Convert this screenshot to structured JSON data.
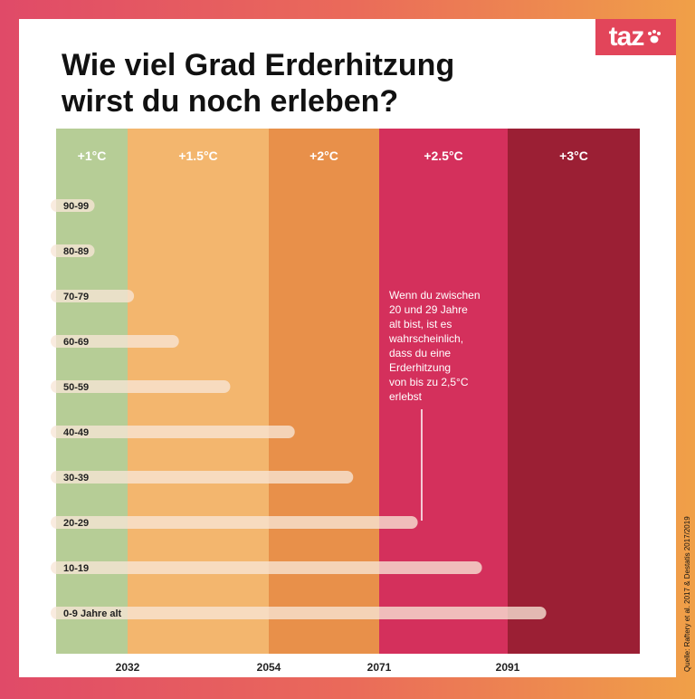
{
  "title_lines": [
    "Wie viel Grad Erderhitzung",
    "wirst du noch erleben?"
  ],
  "logo": "taz",
  "source": "Quelle: Raftery et al. 2017 & Destatis 2017/2019",
  "colors": {
    "zone_1": "#b6cd96",
    "zone_1_5": "#f3b66e",
    "zone_2": "#e8904a",
    "zone_2_5": "#d4305c",
    "zone_3": "#9b1f34",
    "bar": "#f7e6d6"
  },
  "chart_data": {
    "type": "bar",
    "orientation": "horizontal",
    "title": "Wie viel Grad Erderhitzung wirst du noch erleben?",
    "x_start": 2019,
    "x_ticks": [
      2032,
      2054,
      2071,
      2091
    ],
    "zones": [
      {
        "label": "+1°C",
        "from": 2019,
        "to": 2032
      },
      {
        "label": "+1.5°C",
        "from": 2032,
        "to": 2054
      },
      {
        "label": "+2°C",
        "from": 2054,
        "to": 2071
      },
      {
        "label": "+2.5°C",
        "from": 2071,
        "to": 2091
      },
      {
        "label": "+3°C",
        "from": 2091,
        "to": 2111
      }
    ],
    "categories": [
      "90-99",
      "80-89",
      "70-79",
      "60-69",
      "50-59",
      "40-49",
      "30-39",
      "20-29",
      "10-19",
      "0-9 Jahre alt"
    ],
    "values": [
      2026,
      2026,
      2033,
      2040,
      2048,
      2058,
      2067,
      2077,
      2087,
      2097
    ],
    "annotation": {
      "text": "Wenn du zwischen 20 und 29 Jahre alt bist, ist es wahrscheinlich, dass du eine Erderhitzung von bis zu 2,5°C erlebst",
      "lines": [
        "Wenn du zwischen",
        "20 und 29 Jahre",
        "alt bist, ist es",
        "wahrscheinlich,",
        "dass du eine",
        "Erderhitzung",
        "von bis zu 2,5°C",
        "erlebst"
      ],
      "category": "20-29"
    }
  }
}
